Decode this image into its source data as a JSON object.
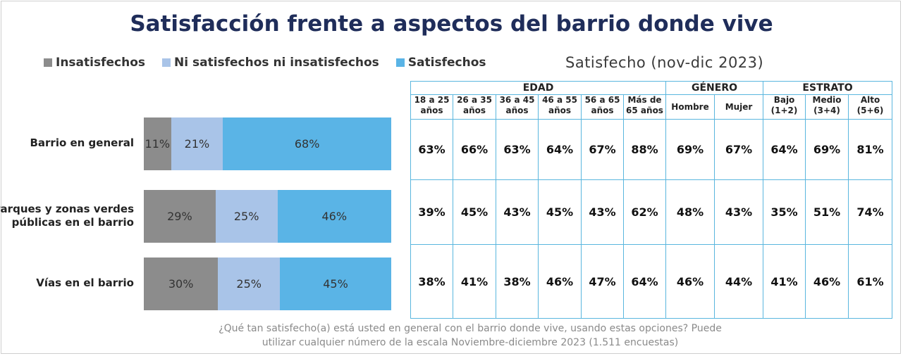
{
  "title": "Satisfacción frente a aspectos del barrio donde vive",
  "legend": [
    {
      "label": "Insatisfechos",
      "color": "#8c8c8c"
    },
    {
      "label": "Ni satisfechos ni insatisfechos",
      "color": "#a9c4e8"
    },
    {
      "label": "Satisfechos",
      "color": "#5ab4e6"
    }
  ],
  "table_caption": "Satisfecho (nov-dic 2023)",
  "table": {
    "groups": [
      {
        "label": "EDAD",
        "span": 6
      },
      {
        "label": "GÉNERO",
        "span": 2
      },
      {
        "label": "ESTRATO",
        "span": 3
      }
    ],
    "columns": [
      [
        "18 a 25",
        "años"
      ],
      [
        "26 a 35",
        "años"
      ],
      [
        "36 a 45",
        "años"
      ],
      [
        "46 a 55",
        "años"
      ],
      [
        "56 a 65",
        "años"
      ],
      [
        "Más de",
        "65 años"
      ],
      [
        "Hombre",
        ""
      ],
      [
        "Mujer",
        ""
      ],
      [
        "Bajo",
        "(1+2)"
      ],
      [
        "Medio",
        "(3+4)"
      ],
      [
        "Alto",
        "(5+6)"
      ]
    ],
    "rows": [
      [
        "63%",
        "66%",
        "63%",
        "64%",
        "67%",
        "88%",
        "69%",
        "67%",
        "64%",
        "69%",
        "81%"
      ],
      [
        "39%",
        "45%",
        "43%",
        "45%",
        "43%",
        "62%",
        "48%",
        "43%",
        "35%",
        "51%",
        "74%"
      ],
      [
        "38%",
        "41%",
        "38%",
        "46%",
        "47%",
        "64%",
        "46%",
        "44%",
        "41%",
        "46%",
        "61%"
      ]
    ]
  },
  "footnote": {
    "line1": "¿Qué tan satisfecho(a) está usted en general con el barrio donde vive, usando estas opciones? Puede",
    "line2": "utilizar cualquier número de la escala Noviembre-diciembre 2023 (1.511 encuestas)"
  },
  "chart_data": {
    "type": "bar",
    "orientation": "horizontal",
    "stacked": true,
    "categories": [
      [
        "Barrio en general"
      ],
      [
        "Parques y zonas verdes",
        "públicas en el barrio"
      ],
      [
        "Vías en el barrio"
      ]
    ],
    "series": [
      {
        "name": "Insatisfechos",
        "values": [
          11,
          29,
          30
        ],
        "labels": [
          "11%",
          "29%",
          "30%"
        ],
        "color": "#8c8c8c"
      },
      {
        "name": "Ni satisfechos ni insatisfechos",
        "values": [
          21,
          25,
          25
        ],
        "labels": [
          "21%",
          "25%",
          "25%"
        ],
        "color": "#a9c4e8"
      },
      {
        "name": "Satisfechos",
        "values": [
          68,
          46,
          45
        ],
        "labels": [
          "68%",
          "46%",
          "45%"
        ],
        "color": "#5ab4e6"
      }
    ],
    "xlim": [
      0,
      100
    ]
  }
}
